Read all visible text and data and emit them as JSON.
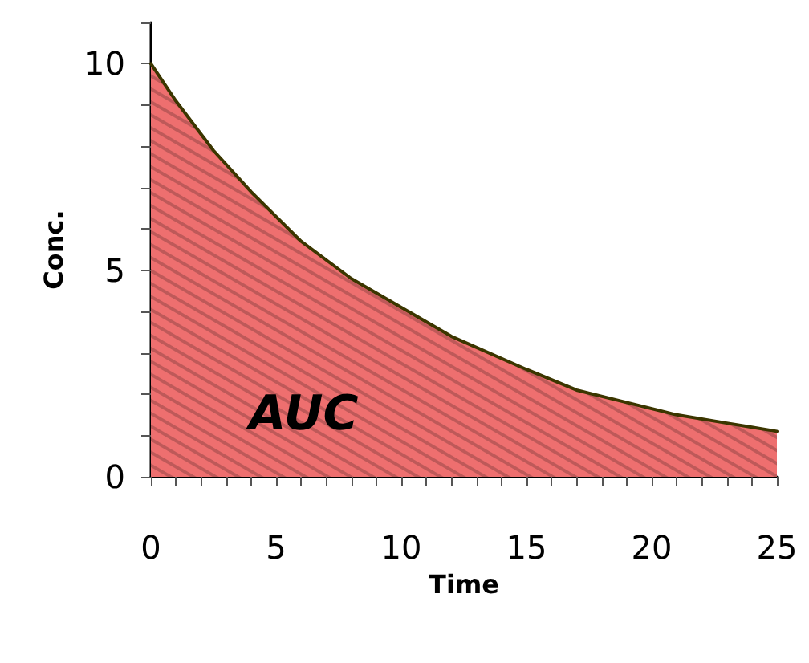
{
  "chart_data": {
    "type": "area",
    "xlabel": "Time",
    "ylabel": "Conc.",
    "x": [
      0,
      1,
      2.5,
      4,
      6,
      8,
      10,
      12,
      15,
      17,
      19,
      21,
      23,
      24,
      25
    ],
    "series": [
      {
        "color": "#ee6f6f",
        "values": [
          10,
          9.1,
          7.9,
          6.9,
          5.7,
          4.8,
          4.1,
          3.4,
          2.6,
          2.1,
          1.8,
          1.5,
          1.3,
          1.2,
          1.1
        ]
      }
    ],
    "xlim": [
      0,
      25
    ],
    "ylim": [
      0,
      11
    ],
    "xticks": [
      0,
      {
        "value": 1,
        "label": null
      },
      {
        "value": 2,
        "label": null
      },
      {
        "value": 3,
        "label": null
      },
      {
        "value": 4,
        "label": null
      },
      5,
      {
        "value": 6,
        "label": null
      },
      {
        "value": 7,
        "label": null
      },
      {
        "value": 8,
        "label": null
      },
      {
        "value": 9,
        "label": null
      },
      10,
      {
        "value": 11,
        "label": null
      },
      {
        "value": 12,
        "label": null
      },
      {
        "value": 13,
        "label": null
      },
      {
        "value": 14,
        "label": null
      },
      15,
      {
        "value": 16,
        "label": null
      },
      {
        "value": 17,
        "label": null
      },
      {
        "value": 18,
        "label": null
      },
      {
        "value": 19,
        "label": null
      },
      20,
      {
        "value": 21,
        "label": null
      },
      {
        "value": 22,
        "label": null
      },
      {
        "value": 23,
        "label": null
      },
      {
        "value": 24,
        "label": null
      },
      25
    ],
    "yticks": [
      0,
      {
        "value": 1,
        "label": null
      },
      {
        "value": 2,
        "label": null
      },
      {
        "value": 3,
        "label": null
      },
      {
        "value": 4,
        "label": null
      },
      5,
      {
        "value": 6,
        "label": null
      },
      {
        "value": 7,
        "label": null
      },
      {
        "value": 8,
        "label": null
      },
      {
        "value": 9,
        "label": null
      },
      10,
      {
        "value": 11,
        "label": null
      }
    ],
    "annotations": [
      "AUC"
    ],
    "grid": false,
    "marker": "none",
    "line_style": "solid"
  }
}
